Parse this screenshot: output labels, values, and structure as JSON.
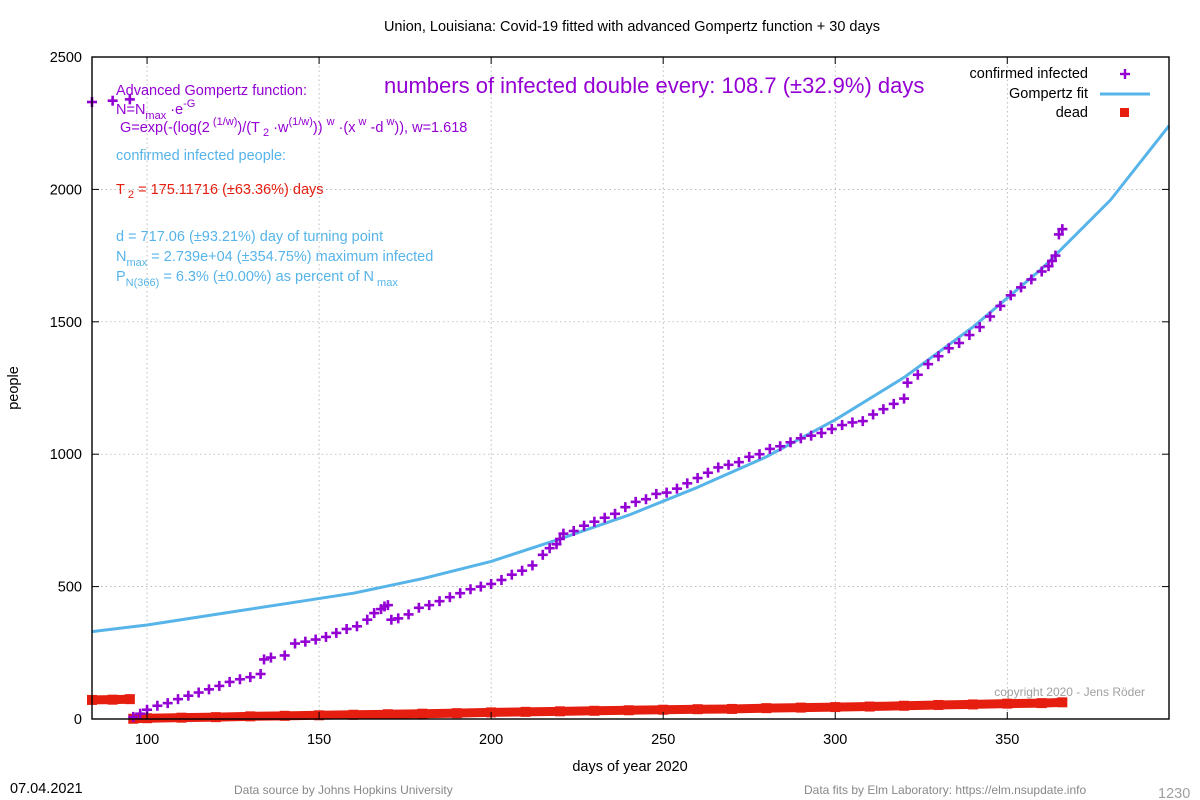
{
  "chart_data": {
    "type": "scatter",
    "title": "Union,  Louisiana: Covid-19 fitted with advanced Gompertz function + 30 days",
    "xlabel": "days of year 2020",
    "ylabel": "people",
    "xlim": [
      84,
      397
    ],
    "ylim": [
      0,
      2500
    ],
    "xticks": [
      100,
      150,
      200,
      250,
      300,
      350
    ],
    "yticks": [
      0,
      500,
      1000,
      1500,
      2000,
      2500
    ],
    "grid": true,
    "legend_position": "top-right",
    "legend": [
      {
        "label": "confirmed infected",
        "color": "#9400d3",
        "marker": "plus"
      },
      {
        "label": "Gompertz fit",
        "color": "#56b4e9",
        "marker": "line"
      },
      {
        "label": "dead",
        "color": "#e51e10",
        "marker": "square"
      }
    ],
    "series": [
      {
        "name": "confirmed infected",
        "color": "#9400d3",
        "x": [
          84,
          90,
          95,
          96,
          98,
          100,
          103,
          106,
          109,
          112,
          115,
          118,
          121,
          124,
          127,
          130,
          133,
          134,
          136,
          140,
          143,
          146,
          149,
          152,
          155,
          158,
          161,
          164,
          166,
          168,
          169,
          170,
          171,
          173,
          176,
          179,
          182,
          185,
          188,
          191,
          194,
          197,
          200,
          203,
          206,
          209,
          212,
          215,
          217,
          219,
          220,
          221,
          224,
          227,
          230,
          233,
          236,
          239,
          242,
          245,
          248,
          251,
          254,
          257,
          260,
          263,
          266,
          269,
          272,
          275,
          278,
          281,
          284,
          287,
          290,
          293,
          296,
          299,
          302,
          305,
          308,
          311,
          314,
          317,
          320,
          321,
          324,
          327,
          330,
          333,
          336,
          339,
          342,
          345,
          348,
          351,
          354,
          357,
          360,
          362,
          363,
          364,
          365,
          366
        ],
        "y": [
          2330,
          2335,
          2340,
          8,
          20,
          35,
          50,
          60,
          75,
          88,
          100,
          112,
          125,
          140,
          150,
          158,
          170,
          225,
          232,
          240,
          285,
          292,
          300,
          310,
          325,
          340,
          350,
          375,
          400,
          415,
          425,
          430,
          375,
          380,
          395,
          420,
          430,
          445,
          460,
          475,
          490,
          500,
          510,
          525,
          545,
          560,
          580,
          620,
          645,
          660,
          680,
          700,
          710,
          730,
          745,
          760,
          775,
          800,
          820,
          830,
          850,
          855,
          870,
          890,
          910,
          930,
          950,
          960,
          970,
          990,
          1000,
          1020,
          1030,
          1045,
          1060,
          1070,
          1080,
          1095,
          1110,
          1120,
          1125,
          1150,
          1170,
          1190,
          1210,
          1270,
          1300,
          1340,
          1370,
          1400,
          1420,
          1450,
          1480,
          1520,
          1560,
          1600,
          1630,
          1660,
          1690,
          1710,
          1730,
          1750,
          1830,
          1850
        ]
      },
      {
        "name": "Gompertz fit",
        "color": "#56b4e9",
        "x": [
          84,
          100,
          120,
          140,
          160,
          180,
          200,
          220,
          240,
          260,
          280,
          300,
          320,
          340,
          360,
          380,
          397
        ],
        "y": [
          330,
          355,
          395,
          435,
          475,
          530,
          595,
          680,
          770,
          875,
          990,
          1130,
          1290,
          1480,
          1700,
          1960,
          2240
        ]
      },
      {
        "name": "dead",
        "color": "#e51e10",
        "x": [
          84,
          90,
          95,
          96,
          100,
          110,
          120,
          130,
          140,
          150,
          160,
          170,
          180,
          190,
          200,
          210,
          220,
          230,
          240,
          250,
          260,
          270,
          280,
          290,
          300,
          310,
          320,
          330,
          340,
          350,
          360,
          366
        ],
        "y": [
          72,
          73,
          75,
          1,
          3,
          5,
          7,
          10,
          12,
          14,
          16,
          18,
          20,
          22,
          25,
          27,
          29,
          31,
          33,
          35,
          37,
          38,
          41,
          43,
          45,
          47,
          50,
          53,
          55,
          58,
          60,
          63
        ]
      }
    ]
  },
  "annotations": {
    "formula_title": "Advanced Gompertz function:",
    "formula_line1": "N=N max ·e -G",
    "formula_line2": "G=exp(-(log(2 (1/w) )/(T 2 ·w (1/w) )) w ·(x w -d w )), w=1.618",
    "doubling": "numbers of infected double every: 108.7 (±32.9%) days",
    "confirmed_label": "confirmed infected people:",
    "t2": "T 2 = 175.11716 (±63.36%) days",
    "turning": "d = 717.06 (±93.21%) day of turning point",
    "nmax": "N max = 2.739e+04 (±354.75%) maximum infected",
    "percent": "P N(366) = 6.3% (±0.00%) as percent of N max",
    "copyright": "copyright 2020 - Jens Röder"
  },
  "footer": {
    "date": "07.04.2021",
    "source": "Data source by Johns Hopkins University",
    "fits": "Data fits by Elm Laboratory: https://elm.nsupdate.info",
    "page_number": "1230"
  },
  "colors": {
    "infected": "#9400d3",
    "fit": "#56b4e9",
    "dead": "#e51e10",
    "grid": "#a0a0a0",
    "footer_text": "#888888"
  }
}
